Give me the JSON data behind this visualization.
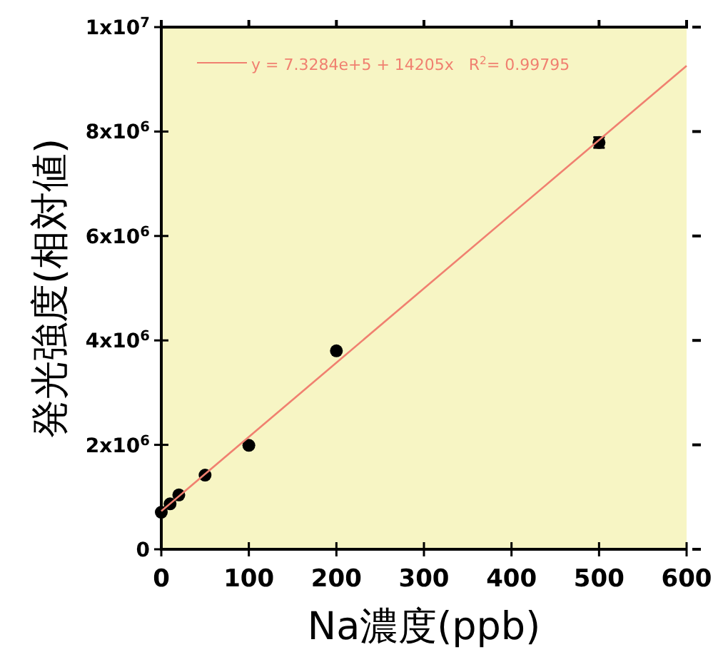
{
  "chart_data": {
    "type": "scatter",
    "xlabel": "Na濃度(ppb)",
    "ylabel": "発光強度(相対値)",
    "xlim": [
      0,
      600
    ],
    "xticks": [
      0,
      100,
      200,
      300,
      400,
      500,
      600
    ],
    "ylim": [
      0,
      10000000
    ],
    "yticks": [
      0,
      {
        "value": 2000000,
        "label": "2x10$^{6}$"
      },
      {
        "value": 4000000,
        "label": "4x10$^{6}$"
      },
      {
        "value": 6000000,
        "label": "6x10$^{6}$"
      },
      {
        "value": 8000000,
        "label": "8x10$^{6}$"
      },
      {
        "value": 10000000,
        "label": "1x10$^{7}$"
      }
    ],
    "grid": false,
    "legend": "top left",
    "series": [
      {
        "marker": "circle",
        "color": "#000000",
        "x": [
          0,
          10,
          20,
          50,
          100,
          200,
          500
        ],
        "values": [
          710000,
          870000,
          1040000,
          1420000,
          1990000,
          3800000,
          7790000
        ],
        "errors": [
          null,
          null,
          null,
          null,
          null,
          null,
          100000
        ]
      },
      {
        "type": "line",
        "name": "y = 7.3284e+5 + 14205x   R$^{2}$= 0.99795",
        "color": "#f08070",
        "x": [
          0,
          600
        ],
        "values": [
          730000,
          9260000
        ],
        "line_style": "solid"
      }
    ]
  }
}
